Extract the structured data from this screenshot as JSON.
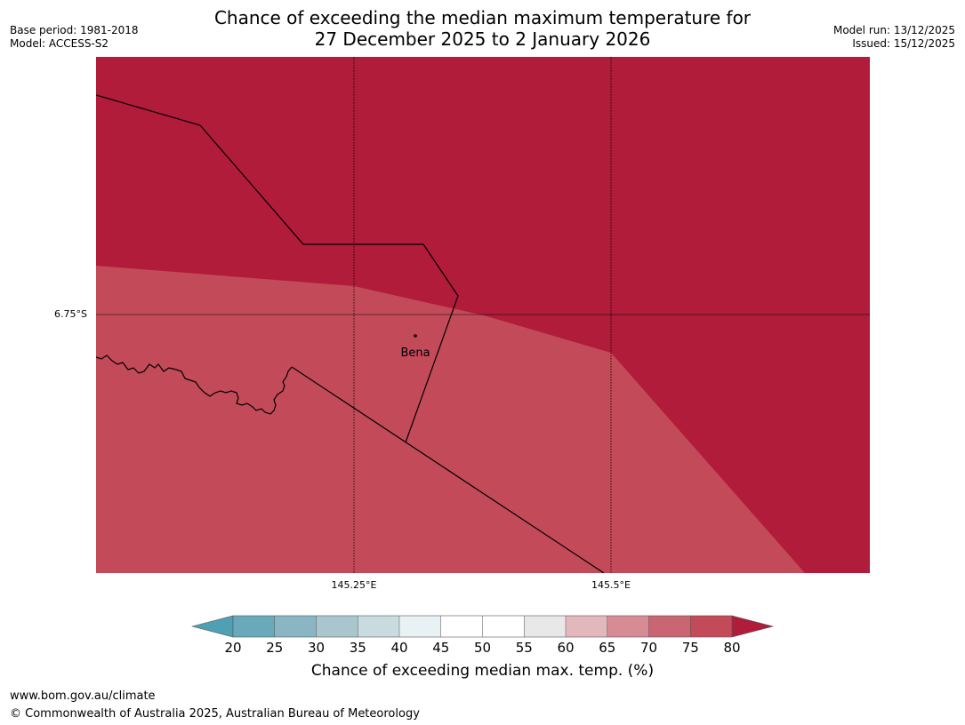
{
  "header": {
    "base_period": "Base period: 1981-2018",
    "model": "Model: ACCESS-S2",
    "title_line1": "Chance of exceeding the median maximum temperature for",
    "title_line2": "27 December 2025 to 2 January 2026",
    "model_run": "Model run: 13/12/2025",
    "issued": "Issued: 15/12/2025"
  },
  "map": {
    "lat_tick": "6.75°S",
    "lon_ticks": [
      "145.25°E",
      "145.5°E"
    ],
    "place_label": "Bena",
    "colors": {
      "high": "#b01c3a",
      "mid": "#c34a58",
      "line": "#000000"
    }
  },
  "colorbar": {
    "ticks": [
      "20",
      "25",
      "30",
      "35",
      "40",
      "45",
      "50",
      "55",
      "60",
      "65",
      "70",
      "75",
      "80"
    ],
    "colors": [
      "#69a9b9",
      "#8ab6c3",
      "#a9c6cd",
      "#c8dbdf",
      "#e8f1f3",
      "#ffffff",
      "#ffffff",
      "#e8e8e8",
      "#e3b8bd",
      "#d78b95",
      "#c96672",
      "#c34a58"
    ],
    "under_color": "#4fa0b2",
    "over_color": "#b01c3a",
    "label": "Chance of exceeding median max. temp. (%)"
  },
  "footer": {
    "url": "www.bom.gov.au/climate",
    "copyright": "© Commonwealth of Australia 2025, Australian Bureau of Meteorology"
  }
}
